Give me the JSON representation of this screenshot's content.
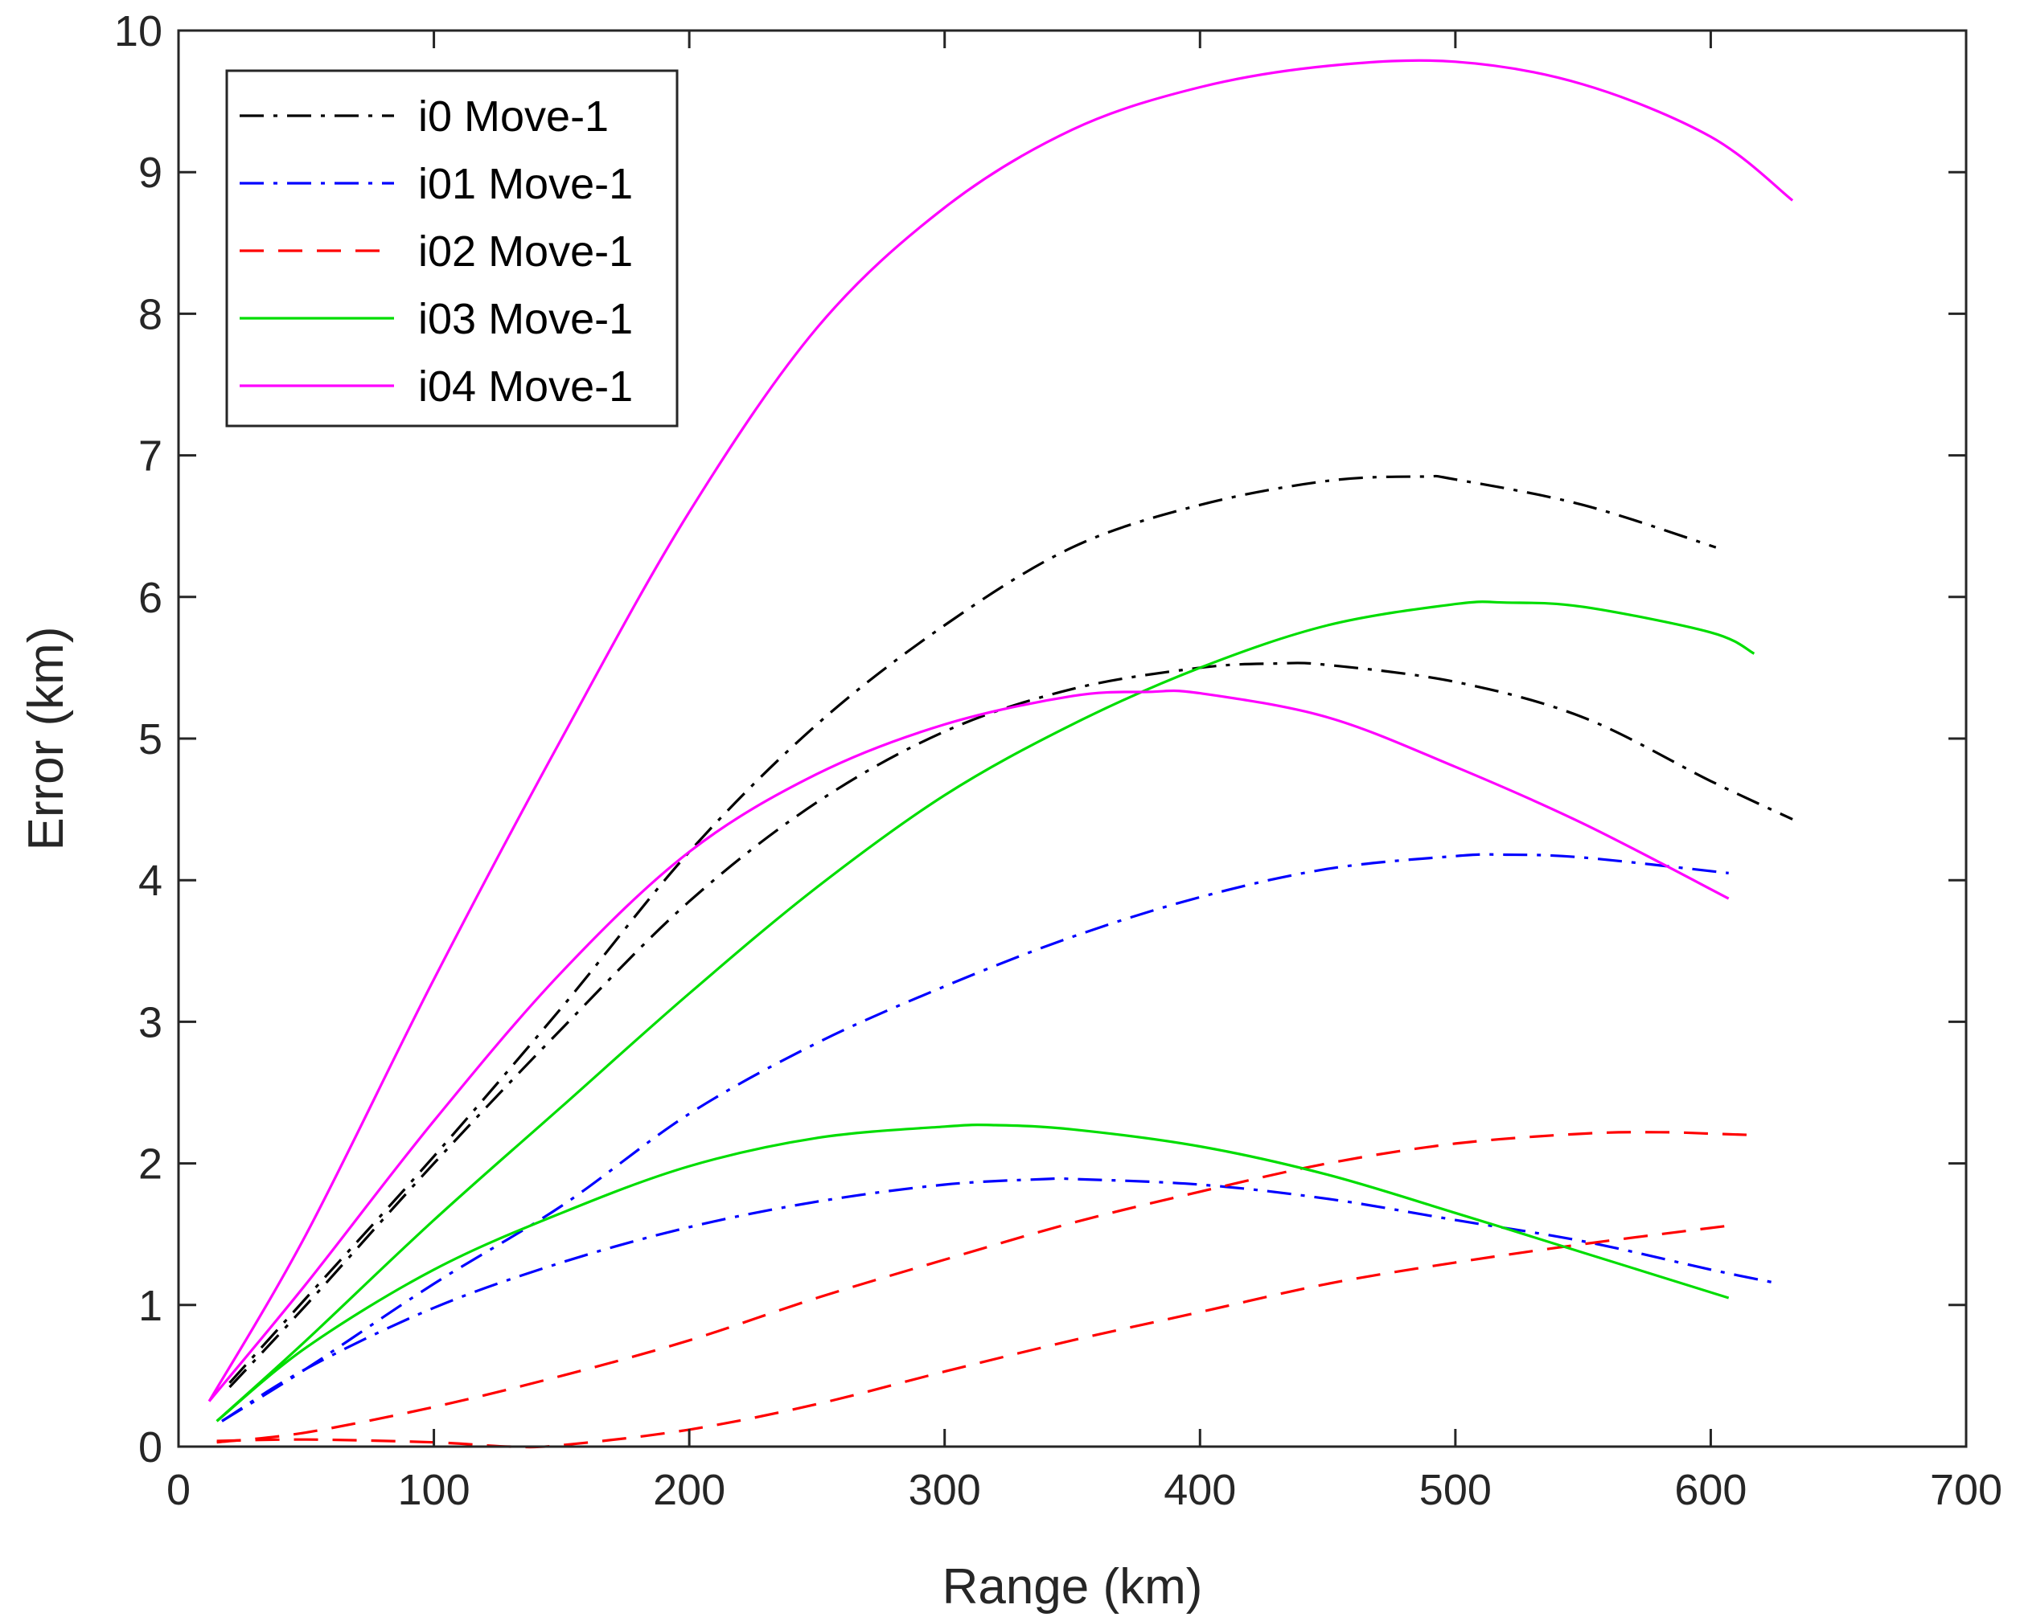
{
  "chart_data": {
    "type": "line",
    "title": "",
    "xlabel": "Range (km)",
    "ylabel": "Error (km)",
    "xlim": [
      0,
      700
    ],
    "ylim": [
      0,
      10
    ],
    "xticks": [
      0,
      100,
      200,
      300,
      400,
      500,
      600,
      700
    ],
    "yticks": [
      0,
      1,
      2,
      3,
      4,
      5,
      6,
      7,
      8,
      9,
      10
    ],
    "grid": false,
    "legend_position": "top-left",
    "series": [
      {
        "name": "i0 Move-1",
        "color": "#000000",
        "dash": "dashdot",
        "curves": [
          {
            "x": [
              20,
              50,
              100,
              150,
              200,
              250,
              300,
              350,
              400,
              450,
              487,
              500,
              550,
              602
            ],
            "y": [
              0.45,
              1.05,
              2.05,
              3.1,
              4.2,
              5.1,
              5.8,
              6.35,
              6.65,
              6.82,
              6.85,
              6.83,
              6.65,
              6.35
            ]
          },
          {
            "x": [
              20,
              50,
              100,
              150,
              200,
              250,
              300,
              350,
              400,
              430,
              450,
              500,
              550,
              600,
              632
            ],
            "y": [
              0.42,
              1.0,
              2.0,
              2.95,
              3.85,
              4.55,
              5.05,
              5.35,
              5.5,
              5.53,
              5.52,
              5.4,
              5.15,
              4.7,
              4.43
            ]
          }
        ]
      },
      {
        "name": "i01 Move-1",
        "color": "#0000ff",
        "dash": "dashdot",
        "curves": [
          {
            "x": [
              17,
              50,
              100,
              150,
              200,
              250,
              300,
              350,
              400,
              450,
              500,
              520,
              550,
              607
            ],
            "y": [
              0.18,
              0.55,
              1.15,
              1.7,
              2.35,
              2.85,
              3.25,
              3.6,
              3.88,
              4.08,
              4.17,
              4.18,
              4.16,
              4.05
            ]
          },
          {
            "x": [
              17,
              50,
              100,
              150,
              200,
              250,
              300,
              340,
              350,
              400,
              450,
              500,
              550,
              600,
              627
            ],
            "y": [
              0.18,
              0.55,
              0.98,
              1.3,
              1.55,
              1.73,
              1.85,
              1.89,
              1.89,
              1.85,
              1.75,
              1.6,
              1.45,
              1.25,
              1.15
            ]
          }
        ]
      },
      {
        "name": "i02 Move-1",
        "color": "#ff0000",
        "dash": "dashed",
        "curves": [
          {
            "x": [
              15,
              50,
              100,
              150,
              200,
              250,
              300,
              350,
              400,
              450,
              500,
              550,
              580,
              600,
              617
            ],
            "y": [
              0.03,
              0.1,
              0.28,
              0.5,
              0.75,
              1.05,
              1.32,
              1.58,
              1.8,
              2.0,
              2.14,
              2.21,
              2.22,
              2.21,
              2.2
            ]
          },
          {
            "x": [
              15,
              50,
              100,
              130,
              150,
              200,
              250,
              300,
              350,
              400,
              450,
              500,
              550,
              607
            ],
            "y": [
              0.04,
              0.05,
              0.03,
              0.0,
              0.01,
              0.12,
              0.3,
              0.53,
              0.75,
              0.95,
              1.15,
              1.3,
              1.43,
              1.56
            ]
          }
        ]
      },
      {
        "name": "i03 Move-1",
        "color": "#00dd00",
        "dash": "solid",
        "curves": [
          {
            "x": [
              15,
              50,
              100,
              150,
              200,
              250,
              300,
              350,
              400,
              450,
              500,
              520,
              550,
              600,
              617
            ],
            "y": [
              0.18,
              0.75,
              1.6,
              2.4,
              3.2,
              3.95,
              4.6,
              5.1,
              5.5,
              5.8,
              5.95,
              5.96,
              5.93,
              5.75,
              5.6
            ]
          },
          {
            "x": [
              15,
              50,
              100,
              150,
              200,
              250,
              300,
              320,
              350,
              400,
              450,
              500,
              550,
              607
            ],
            "y": [
              0.18,
              0.7,
              1.25,
              1.65,
              1.98,
              2.18,
              2.26,
              2.27,
              2.24,
              2.12,
              1.92,
              1.65,
              1.37,
              1.05
            ]
          }
        ]
      },
      {
        "name": "i04 Move-1",
        "color": "#ff00ff",
        "dash": "solid",
        "curves": [
          {
            "x": [
              12,
              50,
              100,
              150,
              200,
              250,
              300,
              350,
              400,
              450,
              500,
              550,
              600,
              632
            ],
            "y": [
              0.32,
              1.5,
              3.3,
              5.0,
              6.6,
              7.9,
              8.75,
              9.3,
              9.6,
              9.75,
              9.78,
              9.62,
              9.25,
              8.8
            ]
          },
          {
            "x": [
              12,
              50,
              100,
              150,
              200,
              250,
              300,
              350,
              380,
              400,
              450,
              500,
              550,
              607
            ],
            "y": [
              0.32,
              1.15,
              2.3,
              3.35,
              4.2,
              4.75,
              5.1,
              5.3,
              5.33,
              5.32,
              5.15,
              4.8,
              4.4,
              3.87
            ]
          }
        ]
      }
    ]
  }
}
